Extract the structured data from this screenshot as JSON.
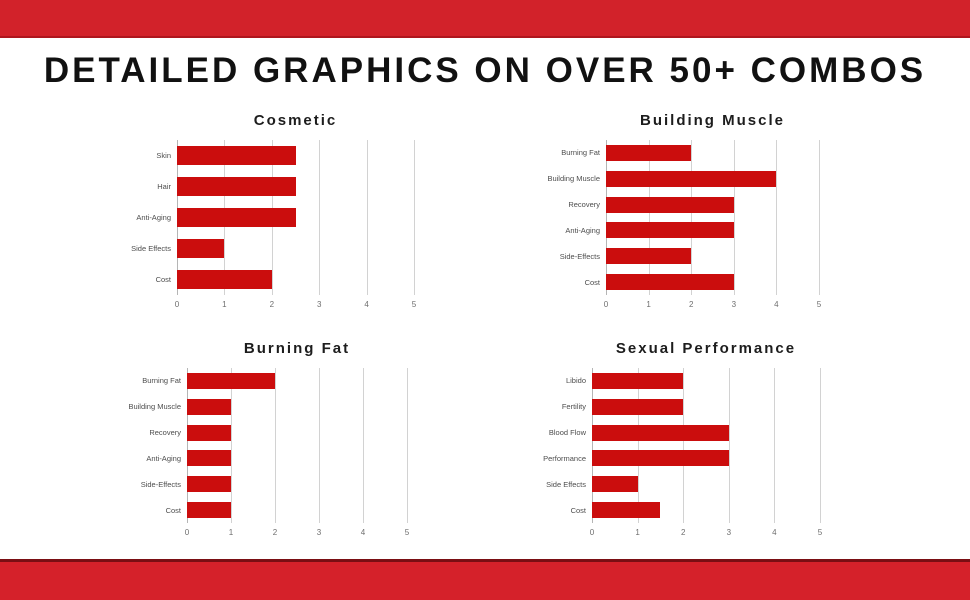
{
  "header": {
    "title": "DETAILED GRAPHICS ON OVER 50+ COMBOS"
  },
  "colors": {
    "band_red": "#D2222A",
    "band_bottom_red": "#D5212A",
    "band_dark_edge": "#7A0E13",
    "bar_red": "#CB0D0D",
    "gridline": "#D2D2D2",
    "zero_axis": "#B5B5B5",
    "chart_title_text": "#1D1D1D",
    "category_label_text": "#4D4D4D",
    "tick_label_text": "#6E6E6E",
    "page_title_text": "#111111"
  },
  "chart_data": [
    {
      "type": "bar",
      "orientation": "horizontal",
      "title": "Cosmetic",
      "categories": [
        "Skin",
        "Hair",
        "Anti-Aging",
        "Side Effects",
        "Cost"
      ],
      "values": [
        2.5,
        2.5,
        2.5,
        1,
        2
      ],
      "xlim": [
        0,
        5
      ],
      "xticks": [
        0,
        1,
        2,
        3,
        4,
        5
      ],
      "grid": true,
      "legend": "none",
      "bar_color": "#CB0D0D"
    },
    {
      "type": "bar",
      "orientation": "horizontal",
      "title": "Building Muscle",
      "categories": [
        "Burning Fat",
        "Building Muscle",
        "Recovery",
        "Anti-Aging",
        "Side-Effects",
        "Cost"
      ],
      "values": [
        2,
        4,
        3,
        3,
        2,
        3
      ],
      "xlim": [
        0,
        5
      ],
      "xticks": [
        0,
        1,
        2,
        3,
        4,
        5
      ],
      "grid": true,
      "legend": "none",
      "bar_color": "#CB0D0D"
    },
    {
      "type": "bar",
      "orientation": "horizontal",
      "title": "Burning Fat",
      "categories": [
        "Burning Fat",
        "Building Muscle",
        "Recovery",
        "Anti-Aging",
        "Side-Effects",
        "Cost"
      ],
      "values": [
        2,
        1,
        1,
        1,
        1,
        1
      ],
      "xlim": [
        0,
        5
      ],
      "xticks": [
        0,
        1,
        2,
        3,
        4,
        5
      ],
      "grid": true,
      "legend": "none",
      "bar_color": "#CB0D0D"
    },
    {
      "type": "bar",
      "orientation": "horizontal",
      "title": "Sexual Performance",
      "categories": [
        "Libido",
        "Fertility",
        "Blood Flow",
        "Performance",
        "Side Effects",
        "Cost"
      ],
      "values": [
        2,
        2,
        3,
        3,
        1,
        1.5
      ],
      "xlim": [
        0,
        5
      ],
      "xticks": [
        0,
        1,
        2,
        3,
        4,
        5
      ],
      "grid": true,
      "legend": "none",
      "bar_color": "#CB0D0D"
    }
  ]
}
